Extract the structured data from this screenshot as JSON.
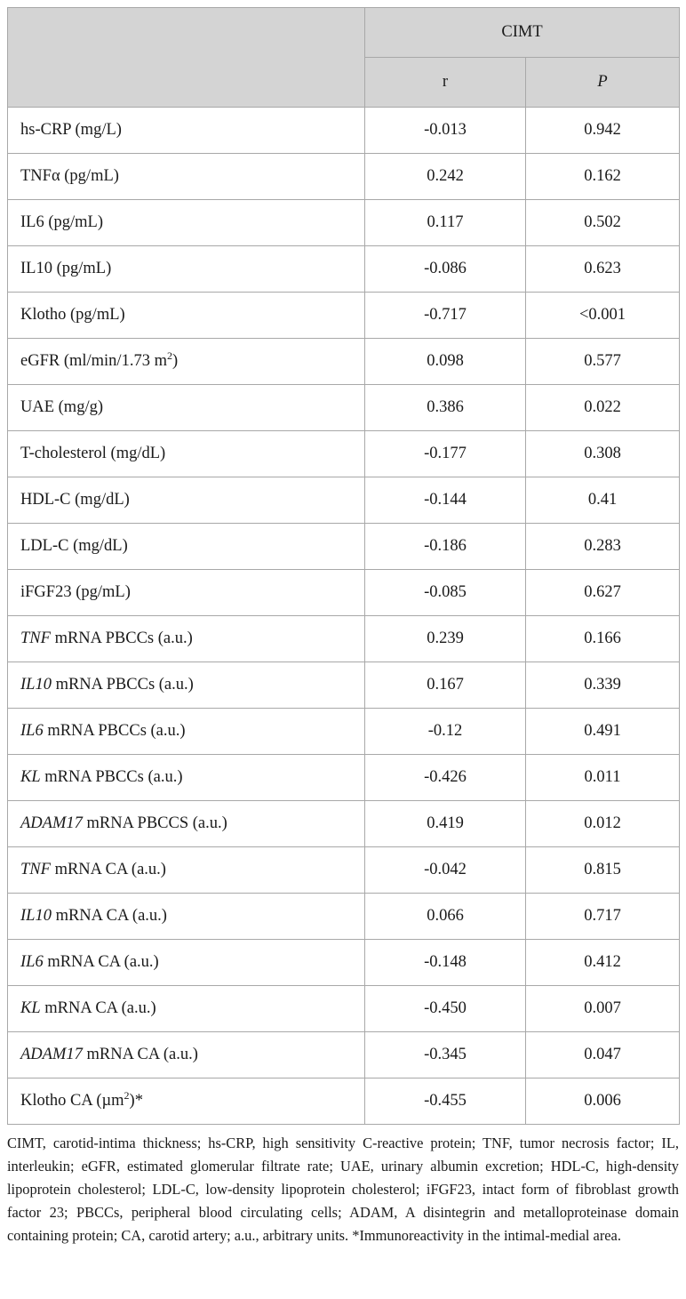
{
  "header": {
    "group": "CIMT",
    "col_r": "r",
    "col_p": "P"
  },
  "rows": [
    {
      "gene": "",
      "label": "hs-CRP (mg/L)",
      "sup": "",
      "tail": "",
      "r": "-0.013",
      "p": "0.942"
    },
    {
      "gene": "",
      "label": "TNFα (pg/mL)",
      "sup": "",
      "tail": "",
      "r": "0.242",
      "p": "0.162"
    },
    {
      "gene": "",
      "label": "IL6 (pg/mL)",
      "sup": "",
      "tail": "",
      "r": "0.117",
      "p": "0.502"
    },
    {
      "gene": "",
      "label": "IL10 (pg/mL)",
      "sup": "",
      "tail": "",
      "r": "-0.086",
      "p": "0.623"
    },
    {
      "gene": "",
      "label": "Klotho (pg/mL)",
      "sup": "",
      "tail": "",
      "r": "-0.717",
      "p": "<0.001"
    },
    {
      "gene": "",
      "label": "eGFR (ml/min/1.73 m",
      "sup": "2",
      "tail": ")",
      "r": "0.098",
      "p": "0.577"
    },
    {
      "gene": "",
      "label": "UAE (mg/g)",
      "sup": "",
      "tail": "",
      "r": "0.386",
      "p": "0.022"
    },
    {
      "gene": "",
      "label": "T-cholesterol (mg/dL)",
      "sup": "",
      "tail": "",
      "r": "-0.177",
      "p": "0.308"
    },
    {
      "gene": "",
      "label": "HDL-C (mg/dL)",
      "sup": "",
      "tail": "",
      "r": "-0.144",
      "p": "0.41"
    },
    {
      "gene": "",
      "label": "LDL-C (mg/dL)",
      "sup": "",
      "tail": "",
      "r": "-0.186",
      "p": "0.283"
    },
    {
      "gene": "",
      "label": "iFGF23 (pg/mL)",
      "sup": "",
      "tail": "",
      "r": "-0.085",
      "p": "0.627"
    },
    {
      "gene": "TNF",
      "label": " mRNA PBCCs (a.u.)",
      "sup": "",
      "tail": "",
      "r": "0.239",
      "p": "0.166"
    },
    {
      "gene": "IL10",
      "label": " mRNA PBCCs (a.u.)",
      "sup": "",
      "tail": "",
      "r": "0.167",
      "p": "0.339"
    },
    {
      "gene": "IL6",
      "label": " mRNA PBCCs (a.u.)",
      "sup": "",
      "tail": "",
      "r": "-0.12",
      "p": "0.491"
    },
    {
      "gene": "KL",
      "label": " mRNA PBCCs (a.u.)",
      "sup": "",
      "tail": "",
      "r": "-0.426",
      "p": "0.011"
    },
    {
      "gene": "ADAM17",
      "label": " mRNA PBCCS (a.u.)",
      "sup": "",
      "tail": "",
      "r": "0.419",
      "p": "0.012"
    },
    {
      "gene": "TNF",
      "label": " mRNA CA (a.u.)",
      "sup": "",
      "tail": "",
      "r": "-0.042",
      "p": "0.815"
    },
    {
      "gene": "IL10",
      "label": " mRNA CA (a.u.)",
      "sup": "",
      "tail": "",
      "r": "0.066",
      "p": "0.717"
    },
    {
      "gene": "IL6",
      "label": " mRNA CA (a.u.)",
      "sup": "",
      "tail": "",
      "r": "-0.148",
      "p": "0.412"
    },
    {
      "gene": "KL",
      "label": " mRNA CA (a.u.)",
      "sup": "",
      "tail": "",
      "r": "-0.450",
      "p": "0.007"
    },
    {
      "gene": "ADAM17",
      "label": " mRNA CA (a.u.)",
      "sup": "",
      "tail": "",
      "r": "-0.345",
      "p": "0.047"
    },
    {
      "gene": "",
      "label": "Klotho CA (µm",
      "sup": "2",
      "tail": ")*",
      "r": "-0.455",
      "p": "0.006"
    }
  ],
  "footnote": "CIMT, carotid-intima thickness; hs-CRP, high sensitivity C-reactive protein; TNF, tumor necrosis factor; IL, interleukin; eGFR, estimated glomerular filtrate rate; UAE, urinary albumin excretion; HDL-C, high-density lipoprotein cholesterol; LDL-C, low-density lipoprotein cholesterol; iFGF23, intact form of fibroblast growth factor 23; PBCCs, peripheral blood circulating cells; ADAM, A disintegrin and metalloproteinase domain containing protein; CA, carotid artery; a.u., arbitrary units. *Immunoreactivity in the intimal-medial area."
}
